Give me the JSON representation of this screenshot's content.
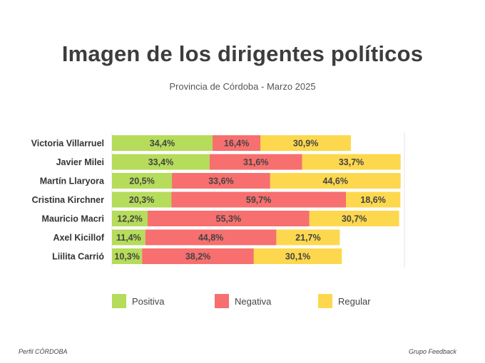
{
  "chart_data": {
    "type": "bar",
    "orientation": "horizontal",
    "stacked": true,
    "title": "Imagen de los dirigentes políticos",
    "subtitle": "Provincia de Córdoba - Marzo 2025",
    "categories": [
      "Victoria Villarruel",
      "Javier Milei",
      "Martín Llaryora",
      "Cristina Kirchner",
      "Mauricio Macri",
      "Axel Kicillof",
      "Liilita Carrió"
    ],
    "series": [
      {
        "name": "Positiva",
        "color": "#b5dc5a",
        "values": [
          34.4,
          33.4,
          20.5,
          20.3,
          12.2,
          11.4,
          10.3
        ],
        "labels": [
          "34,4%",
          "33,4%",
          "20,5%",
          "20,3%",
          "12,2%",
          "11,4%",
          "10,3%"
        ]
      },
      {
        "name": "Negativa",
        "color": "#f76f6f",
        "values": [
          16.4,
          31.6,
          33.6,
          59.7,
          55.3,
          44.8,
          38.2
        ],
        "labels": [
          "16,4%",
          "31,6%",
          "33,6%",
          "59,7%",
          "55,3%",
          "44,8%",
          "38,2%"
        ]
      },
      {
        "name": "Regular",
        "color": "#fdd84e",
        "values": [
          30.9,
          33.7,
          44.6,
          18.6,
          30.7,
          21.7,
          30.1
        ],
        "labels": [
          "30,9%",
          "33,7%",
          "44,6%",
          "18,6%",
          "30,7%",
          "21,7%",
          "30,1%"
        ]
      }
    ],
    "xlim": [
      0,
      100
    ],
    "grid": false,
    "legend_position": "bottom"
  },
  "footer": {
    "source_left": "Perfil CÓRDOBA",
    "source_right": "Grupo Feedback"
  }
}
